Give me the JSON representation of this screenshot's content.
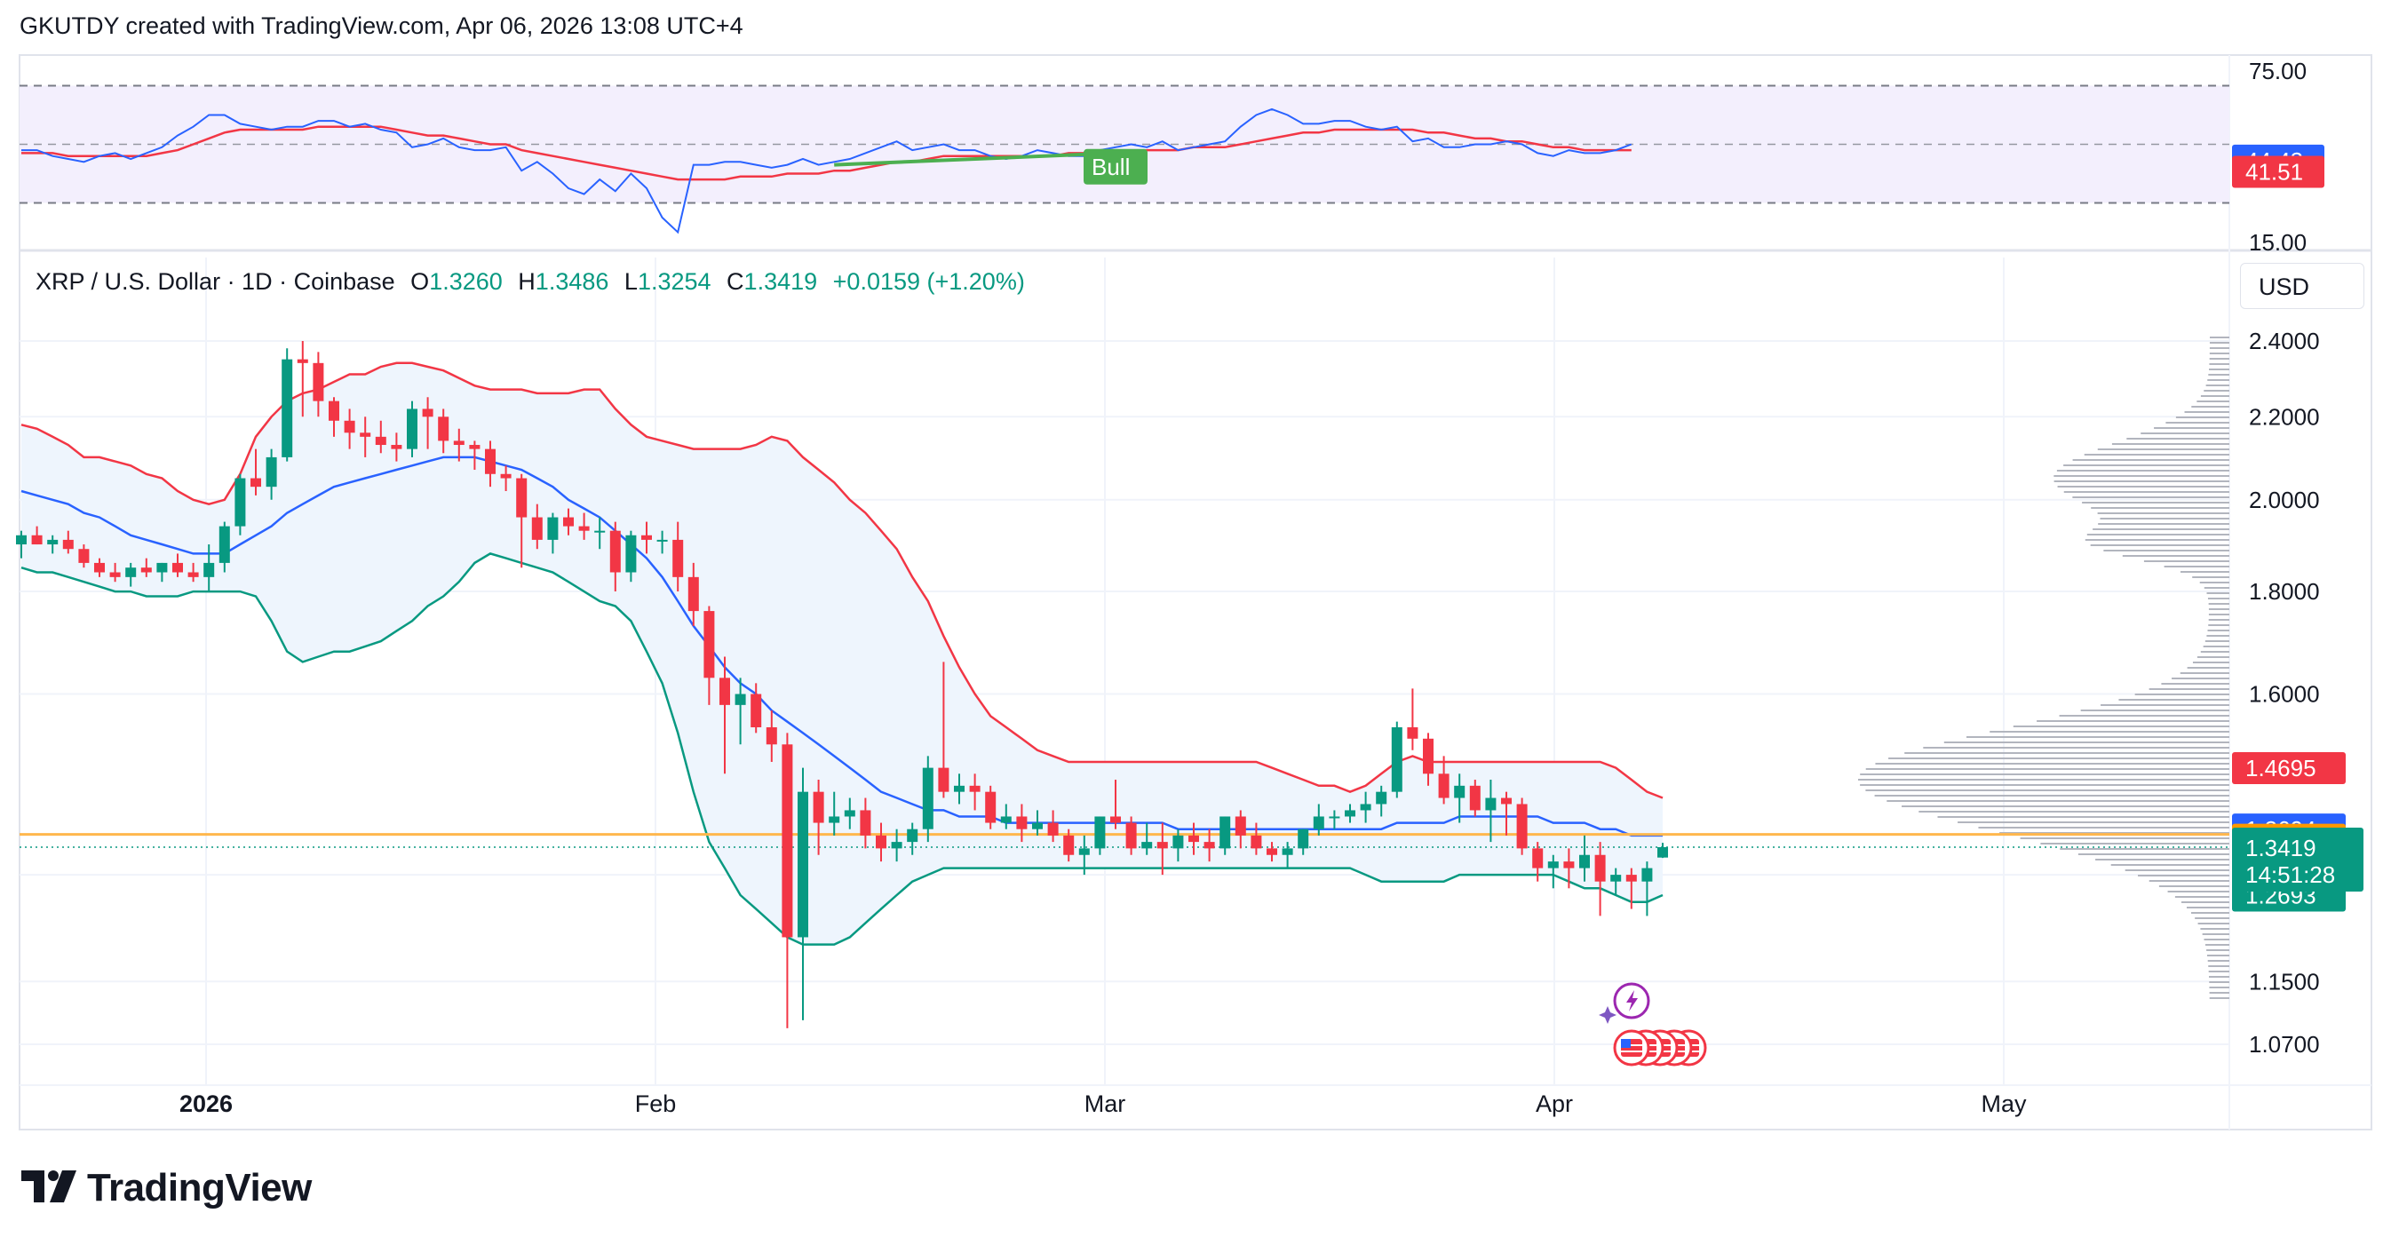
{
  "header": {
    "text": "GKUTDY created with TradingView.com, Apr 06, 2026 13:08 UTC+4"
  },
  "legend": {
    "symbol": "XRP / U.S. Dollar · 1D · Coinbase",
    "o_label": "O",
    "o_value": "1.3260",
    "h_label": "H",
    "h_value": "1.3486",
    "l_label": "L",
    "l_value": "1.3254",
    "c_label": "C",
    "c_value": "1.3419",
    "change": "+0.0159 (+1.20%)"
  },
  "currency_button": "USD",
  "brand": {
    "name": "TradingView"
  },
  "colors": {
    "up": "#089981",
    "down": "#f23645",
    "bb_upper": "#f23645",
    "bb_basis": "#2962ff",
    "bb_lower": "#089981",
    "bb_fill": "#eef5fd",
    "rsi_line": "#2962ff",
    "rsi_ma": "#f23645",
    "rsi_band": "#f3effd",
    "hline": "#ff9800",
    "volume_profile": "#b2b5be"
  },
  "chart_data": [
    {
      "type": "line",
      "title": "RSI",
      "yticks": [
        "75.00",
        "15.00"
      ],
      "ylim": [
        15,
        85
      ],
      "band": [
        30,
        70
      ],
      "midline": 50,
      "series": [
        {
          "values": [
            48,
            48,
            46,
            45,
            44,
            46,
            47,
            45,
            47,
            49,
            53,
            56,
            60,
            60,
            57,
            56,
            55,
            56,
            56,
            58,
            58,
            56,
            57,
            55,
            54,
            49,
            50,
            52,
            49,
            48,
            48,
            49,
            41,
            44,
            40,
            35,
            33,
            38,
            34,
            40,
            35,
            25,
            20,
            43,
            43,
            44,
            44,
            43,
            42,
            43,
            45,
            43,
            44,
            45,
            47,
            49,
            51,
            48,
            49,
            50,
            48,
            48,
            46,
            45,
            46,
            48,
            47,
            46,
            46,
            48,
            49,
            50,
            49,
            51,
            48,
            49,
            50,
            51,
            56,
            60,
            62,
            60,
            57,
            57,
            58,
            58,
            56,
            55,
            56,
            51,
            52,
            49,
            49,
            50,
            50,
            51,
            50,
            47,
            46,
            48,
            47,
            47,
            48,
            50
          ]
        },
        {
          "values": [
            47,
            47,
            47,
            46,
            46,
            46,
            46,
            46,
            46,
            47,
            48,
            50,
            52,
            54,
            55,
            55,
            55,
            55,
            55,
            56,
            56,
            56,
            56,
            56,
            55,
            54,
            53,
            53,
            52,
            51,
            50,
            50,
            48,
            47,
            46,
            45,
            44,
            43,
            42,
            41,
            40,
            39,
            38,
            38,
            38,
            38,
            39,
            39,
            39,
            40,
            40,
            40,
            41,
            41,
            42,
            43,
            44,
            44,
            45,
            46,
            46,
            46,
            46,
            46,
            46,
            46,
            46,
            47,
            47,
            47,
            47,
            47,
            48,
            48,
            48,
            49,
            49,
            49,
            50,
            51,
            52,
            53,
            54,
            54,
            55,
            55,
            55,
            55,
            55,
            55,
            54,
            54,
            53,
            52,
            52,
            51,
            51,
            50,
            49,
            49,
            48,
            48,
            48,
            48
          ]
        }
      ],
      "annotations": [
        "Bull"
      ],
      "last_values": [
        "44.43",
        "41.51"
      ]
    },
    {
      "type": "candlestick",
      "title": "XRP / U.S. Dollar · 1D · Coinbase",
      "yticks": [
        "2.4000",
        "2.2000",
        "2.0000",
        "1.8000",
        "1.6000",
        "1.1500",
        "1.0700"
      ],
      "x_ticks": [
        "2026",
        "Feb",
        "Mar",
        "Apr",
        "May"
      ],
      "price_labels": [
        "1.4695",
        "1.3694",
        "1.3618",
        "1.3419",
        "14:51:28",
        "1.2693"
      ],
      "ohlc": [
        [
          1.9,
          1.93,
          1.87,
          1.92
        ],
        [
          1.92,
          1.94,
          1.9,
          1.9
        ],
        [
          1.9,
          1.92,
          1.88,
          1.91
        ],
        [
          1.91,
          1.93,
          1.88,
          1.89
        ],
        [
          1.89,
          1.9,
          1.85,
          1.86
        ],
        [
          1.86,
          1.87,
          1.83,
          1.84
        ],
        [
          1.84,
          1.86,
          1.82,
          1.83
        ],
        [
          1.83,
          1.86,
          1.81,
          1.85
        ],
        [
          1.85,
          1.87,
          1.83,
          1.84
        ],
        [
          1.84,
          1.86,
          1.82,
          1.86
        ],
        [
          1.86,
          1.88,
          1.83,
          1.84
        ],
        [
          1.84,
          1.86,
          1.82,
          1.83
        ],
        [
          1.83,
          1.9,
          1.8,
          1.86
        ],
        [
          1.86,
          1.95,
          1.84,
          1.94
        ],
        [
          1.94,
          2.06,
          1.92,
          2.05
        ],
        [
          2.05,
          2.12,
          2.01,
          2.03
        ],
        [
          2.03,
          2.12,
          2.0,
          2.1
        ],
        [
          2.1,
          2.38,
          2.09,
          2.35
        ],
        [
          2.35,
          2.4,
          2.2,
          2.34
        ],
        [
          2.34,
          2.37,
          2.2,
          2.24
        ],
        [
          2.24,
          2.25,
          2.15,
          2.19
        ],
        [
          2.19,
          2.22,
          2.12,
          2.16
        ],
        [
          2.16,
          2.2,
          2.1,
          2.15
        ],
        [
          2.15,
          2.19,
          2.11,
          2.13
        ],
        [
          2.13,
          2.16,
          2.09,
          2.12
        ],
        [
          2.12,
          2.24,
          2.1,
          2.22
        ],
        [
          2.22,
          2.25,
          2.12,
          2.2
        ],
        [
          2.2,
          2.22,
          2.11,
          2.14
        ],
        [
          2.14,
          2.17,
          2.09,
          2.13
        ],
        [
          2.13,
          2.14,
          2.07,
          2.12
        ],
        [
          2.12,
          2.14,
          2.03,
          2.06
        ],
        [
          2.06,
          2.08,
          2.02,
          2.05
        ],
        [
          2.05,
          2.06,
          1.85,
          1.96
        ],
        [
          1.96,
          1.99,
          1.89,
          1.91
        ],
        [
          1.91,
          1.97,
          1.88,
          1.96
        ],
        [
          1.96,
          1.98,
          1.92,
          1.94
        ],
        [
          1.94,
          1.97,
          1.91,
          1.93
        ],
        [
          1.93,
          1.96,
          1.89,
          1.93
        ],
        [
          1.93,
          1.95,
          1.8,
          1.84
        ],
        [
          1.84,
          1.93,
          1.82,
          1.92
        ],
        [
          1.92,
          1.95,
          1.88,
          1.91
        ],
        [
          1.91,
          1.93,
          1.88,
          1.91
        ],
        [
          1.91,
          1.95,
          1.8,
          1.83
        ],
        [
          1.83,
          1.86,
          1.73,
          1.76
        ],
        [
          1.76,
          1.77,
          1.58,
          1.63
        ],
        [
          1.63,
          1.67,
          1.46,
          1.58
        ],
        [
          1.58,
          1.63,
          1.51,
          1.6
        ],
        [
          1.6,
          1.62,
          1.53,
          1.54
        ],
        [
          1.54,
          1.57,
          1.48,
          1.51
        ],
        [
          1.51,
          1.53,
          1.09,
          1.21
        ],
        [
          1.21,
          1.47,
          1.1,
          1.43
        ],
        [
          1.43,
          1.45,
          1.33,
          1.38
        ],
        [
          1.38,
          1.43,
          1.36,
          1.39
        ],
        [
          1.39,
          1.42,
          1.37,
          1.4
        ],
        [
          1.4,
          1.42,
          1.34,
          1.36
        ],
        [
          1.36,
          1.38,
          1.32,
          1.34
        ],
        [
          1.34,
          1.37,
          1.32,
          1.35
        ],
        [
          1.35,
          1.38,
          1.33,
          1.37
        ],
        [
          1.37,
          1.49,
          1.35,
          1.47
        ],
        [
          1.47,
          1.66,
          1.42,
          1.43
        ],
        [
          1.43,
          1.46,
          1.41,
          1.44
        ],
        [
          1.44,
          1.46,
          1.4,
          1.43
        ],
        [
          1.43,
          1.44,
          1.37,
          1.38
        ],
        [
          1.38,
          1.41,
          1.37,
          1.39
        ],
        [
          1.39,
          1.41,
          1.35,
          1.37
        ],
        [
          1.37,
          1.4,
          1.36,
          1.38
        ],
        [
          1.38,
          1.4,
          1.35,
          1.36
        ],
        [
          1.36,
          1.37,
          1.32,
          1.33
        ],
        [
          1.33,
          1.36,
          1.3,
          1.34
        ],
        [
          1.34,
          1.39,
          1.33,
          1.39
        ],
        [
          1.39,
          1.45,
          1.37,
          1.38
        ],
        [
          1.38,
          1.39,
          1.33,
          1.34
        ],
        [
          1.34,
          1.38,
          1.33,
          1.35
        ],
        [
          1.35,
          1.38,
          1.3,
          1.34
        ],
        [
          1.34,
          1.37,
          1.32,
          1.36
        ],
        [
          1.36,
          1.38,
          1.33,
          1.35
        ],
        [
          1.35,
          1.37,
          1.32,
          1.34
        ],
        [
          1.34,
          1.39,
          1.33,
          1.39
        ],
        [
          1.39,
          1.4,
          1.34,
          1.36
        ],
        [
          1.36,
          1.38,
          1.33,
          1.34
        ],
        [
          1.34,
          1.35,
          1.32,
          1.33
        ],
        [
          1.33,
          1.35,
          1.31,
          1.34
        ],
        [
          1.34,
          1.37,
          1.33,
          1.37
        ],
        [
          1.37,
          1.41,
          1.36,
          1.39
        ],
        [
          1.39,
          1.4,
          1.37,
          1.39
        ],
        [
          1.39,
          1.41,
          1.38,
          1.4
        ],
        [
          1.4,
          1.43,
          1.38,
          1.41
        ],
        [
          1.41,
          1.44,
          1.39,
          1.43
        ],
        [
          1.43,
          1.55,
          1.42,
          1.54
        ],
        [
          1.54,
          1.61,
          1.5,
          1.52
        ],
        [
          1.52,
          1.53,
          1.44,
          1.46
        ],
        [
          1.46,
          1.49,
          1.41,
          1.42
        ],
        [
          1.42,
          1.46,
          1.38,
          1.44
        ],
        [
          1.44,
          1.45,
          1.39,
          1.4
        ],
        [
          1.4,
          1.45,
          1.35,
          1.42
        ],
        [
          1.42,
          1.43,
          1.36,
          1.41
        ],
        [
          1.41,
          1.42,
          1.33,
          1.34
        ],
        [
          1.34,
          1.35,
          1.29,
          1.31
        ],
        [
          1.31,
          1.33,
          1.28,
          1.32
        ],
        [
          1.32,
          1.34,
          1.28,
          1.31
        ],
        [
          1.31,
          1.36,
          1.29,
          1.33
        ],
        [
          1.33,
          1.35,
          1.24,
          1.29
        ],
        [
          1.29,
          1.31,
          1.27,
          1.3
        ],
        [
          1.3,
          1.31,
          1.25,
          1.29
        ],
        [
          1.29,
          1.32,
          1.24,
          1.31
        ],
        [
          1.326,
          1.3486,
          1.3254,
          1.3419
        ]
      ],
      "bollinger": {
        "upper": [
          2.18,
          2.17,
          2.15,
          2.13,
          2.1,
          2.1,
          2.09,
          2.08,
          2.06,
          2.05,
          2.02,
          2.0,
          1.99,
          2.0,
          2.06,
          2.15,
          2.2,
          2.24,
          2.26,
          2.27,
          2.29,
          2.31,
          2.31,
          2.33,
          2.34,
          2.34,
          2.33,
          2.32,
          2.3,
          2.28,
          2.27,
          2.27,
          2.27,
          2.26,
          2.26,
          2.26,
          2.27,
          2.27,
          2.22,
          2.18,
          2.15,
          2.14,
          2.13,
          2.12,
          2.12,
          2.12,
          2.12,
          2.13,
          2.15,
          2.14,
          2.1,
          2.07,
          2.04,
          2.0,
          1.97,
          1.93,
          1.89,
          1.83,
          1.78,
          1.71,
          1.65,
          1.6,
          1.56,
          1.54,
          1.52,
          1.5,
          1.49,
          1.48,
          1.48,
          1.48,
          1.48,
          1.48,
          1.48,
          1.48,
          1.48,
          1.48,
          1.48,
          1.48,
          1.48,
          1.48,
          1.47,
          1.46,
          1.45,
          1.44,
          1.44,
          1.43,
          1.44,
          1.46,
          1.48,
          1.49,
          1.48,
          1.48,
          1.48,
          1.48,
          1.48,
          1.48,
          1.48,
          1.48,
          1.48,
          1.48,
          1.48,
          1.48,
          1.47,
          1.45,
          1.43,
          1.42
        ],
        "basis": [
          2.02,
          2.01,
          2.0,
          1.99,
          1.97,
          1.96,
          1.94,
          1.92,
          1.91,
          1.9,
          1.89,
          1.88,
          1.88,
          1.88,
          1.9,
          1.92,
          1.94,
          1.97,
          1.99,
          2.01,
          2.03,
          2.04,
          2.05,
          2.06,
          2.07,
          2.08,
          2.09,
          2.1,
          2.1,
          2.1,
          2.09,
          2.08,
          2.07,
          2.05,
          2.03,
          2.0,
          1.98,
          1.96,
          1.93,
          1.9,
          1.87,
          1.83,
          1.78,
          1.73,
          1.69,
          1.65,
          1.62,
          1.6,
          1.57,
          1.55,
          1.53,
          1.51,
          1.49,
          1.47,
          1.45,
          1.43,
          1.42,
          1.41,
          1.4,
          1.4,
          1.39,
          1.39,
          1.39,
          1.38,
          1.38,
          1.38,
          1.38,
          1.38,
          1.38,
          1.38,
          1.38,
          1.38,
          1.38,
          1.38,
          1.37,
          1.37,
          1.37,
          1.37,
          1.37,
          1.37,
          1.37,
          1.37,
          1.37,
          1.37,
          1.37,
          1.37,
          1.37,
          1.37,
          1.38,
          1.38,
          1.38,
          1.38,
          1.39,
          1.39,
          1.39,
          1.39,
          1.39,
          1.39,
          1.38,
          1.38,
          1.38,
          1.37,
          1.37,
          1.36,
          1.36,
          1.36
        ],
        "lower": [
          1.85,
          1.84,
          1.84,
          1.83,
          1.82,
          1.81,
          1.8,
          1.8,
          1.79,
          1.79,
          1.79,
          1.8,
          1.8,
          1.8,
          1.8,
          1.79,
          1.74,
          1.68,
          1.66,
          1.67,
          1.68,
          1.68,
          1.69,
          1.7,
          1.72,
          1.74,
          1.77,
          1.79,
          1.82,
          1.86,
          1.88,
          1.87,
          1.86,
          1.85,
          1.84,
          1.82,
          1.8,
          1.78,
          1.77,
          1.74,
          1.68,
          1.62,
          1.53,
          1.43,
          1.35,
          1.31,
          1.27,
          1.25,
          1.23,
          1.21,
          1.2,
          1.2,
          1.2,
          1.21,
          1.23,
          1.25,
          1.27,
          1.29,
          1.3,
          1.31,
          1.31,
          1.31,
          1.31,
          1.31,
          1.31,
          1.31,
          1.31,
          1.31,
          1.31,
          1.31,
          1.31,
          1.31,
          1.31,
          1.31,
          1.31,
          1.31,
          1.31,
          1.31,
          1.31,
          1.31,
          1.31,
          1.31,
          1.31,
          1.31,
          1.31,
          1.31,
          1.3,
          1.29,
          1.29,
          1.29,
          1.29,
          1.29,
          1.3,
          1.3,
          1.3,
          1.3,
          1.3,
          1.3,
          1.3,
          1.29,
          1.28,
          1.28,
          1.27,
          1.26,
          1.26,
          1.27
        ]
      },
      "hline": 1.3618
    }
  ]
}
